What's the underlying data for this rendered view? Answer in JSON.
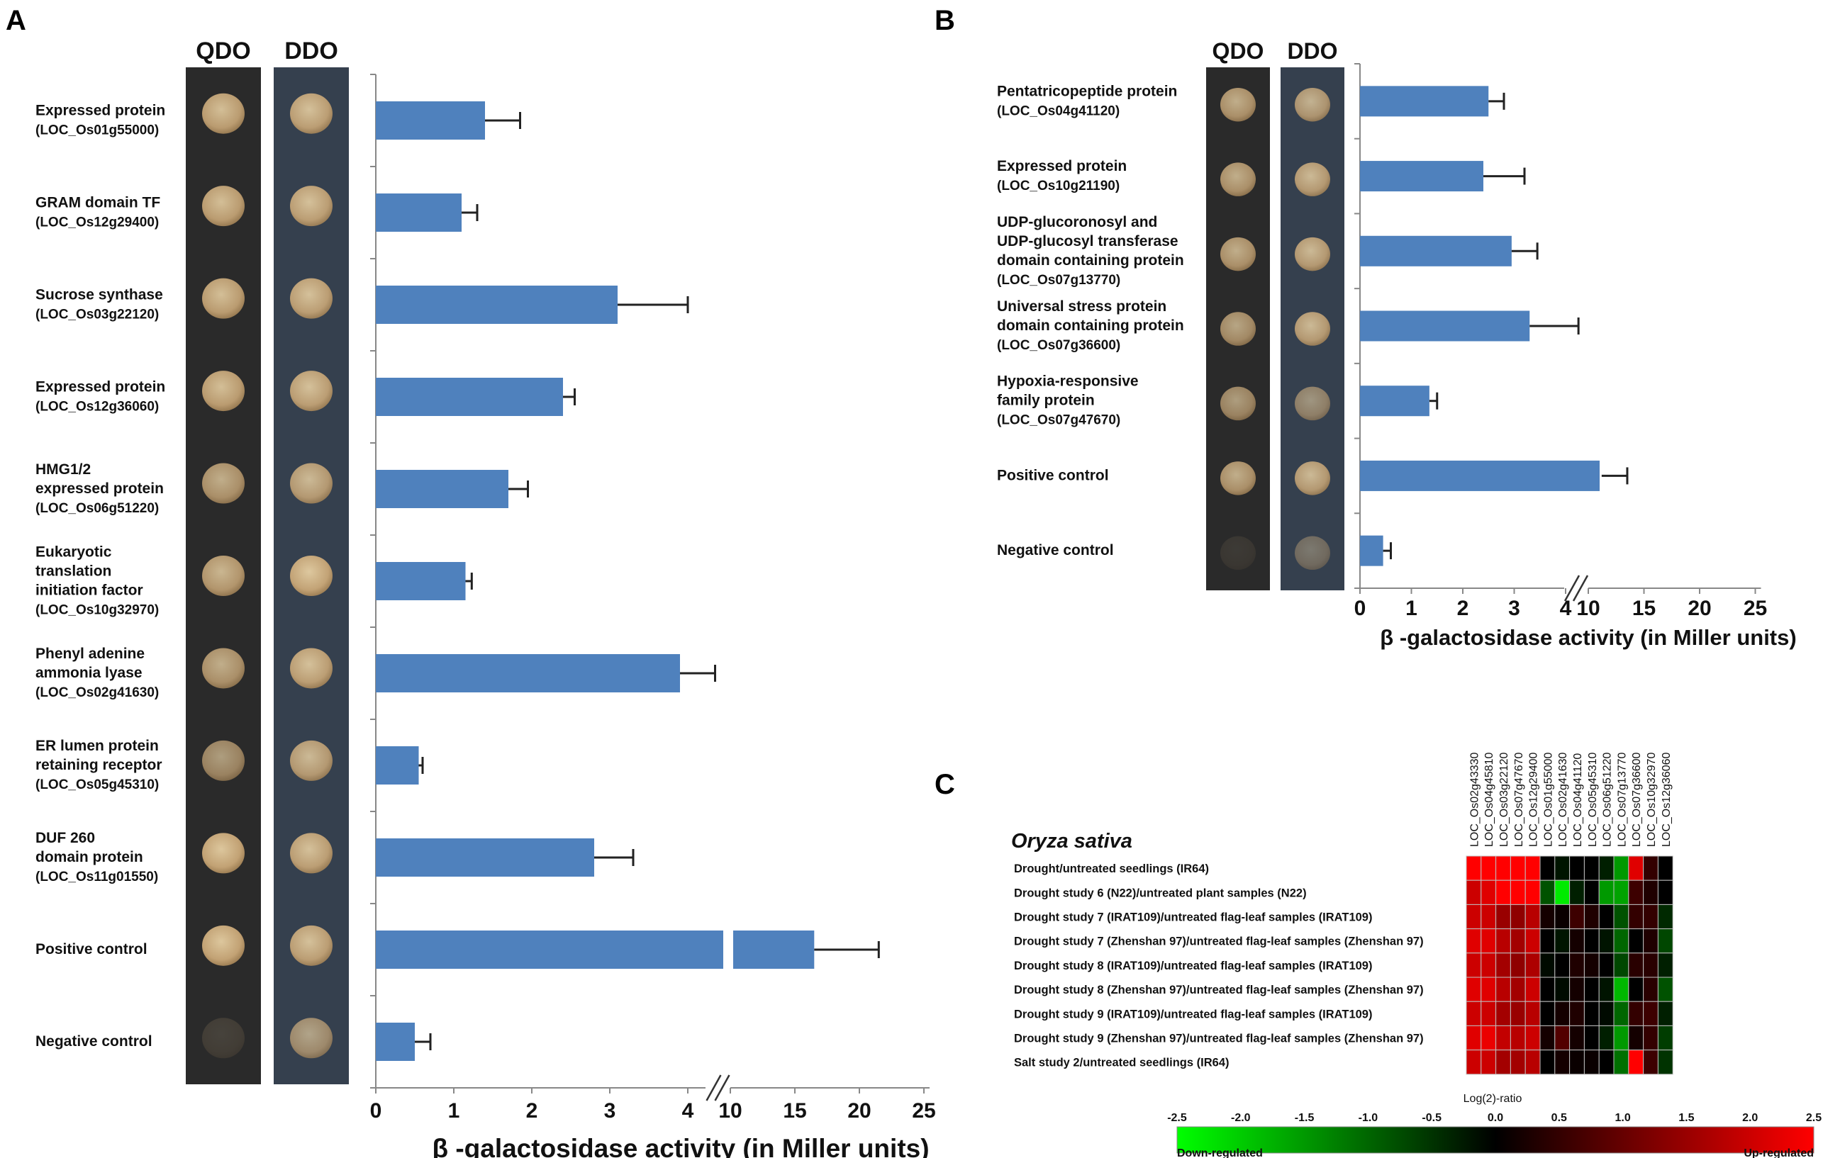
{
  "colors": {
    "bar": "#4f81bd",
    "axis": "#888888",
    "text": "#111111",
    "strip_dark": "#2a2a2a",
    "strip_blue": "#35404e",
    "colony": "#d7b98a"
  },
  "panels": {
    "a": "A",
    "b": "B",
    "c": "C"
  },
  "chart_data": [
    {
      "type": "bar",
      "panel": "A",
      "orientation": "horizontal",
      "column_labels": [
        "QDO",
        "DDO"
      ],
      "xlabel": "β -galactosidase activity (in Miller units)",
      "axis_break": "between 4 and 10",
      "xticks_low": [
        "0",
        "1",
        "2",
        "3",
        "4"
      ],
      "xticks_high": [
        "10",
        "15",
        "20",
        "25"
      ],
      "categories": [
        {
          "name": "Expressed protein",
          "id": "(LOC_Os01g55000)"
        },
        {
          "name": "GRAM domain TF",
          "id": "(LOC_Os12g29400)"
        },
        {
          "name": "Sucrose synthase",
          "id": "(LOC_Os03g22120)"
        },
        {
          "name": "Expressed protein",
          "id": "(LOC_Os12g36060)"
        },
        {
          "name": "HMG1/2\nexpressed protein",
          "id": "(LOC_Os06g51220)"
        },
        {
          "name": "Eukaryotic\ntranslation\ninitiation factor",
          "id": "(LOC_Os10g32970)"
        },
        {
          "name": "Phenyl adenine\nammonia lyase",
          "id": "(LOC_Os02g41630)"
        },
        {
          "name": "ER lumen protein\nretaining receptor",
          "id": "(LOC_Os05g45310)"
        },
        {
          "name": "DUF 260\ndomain protein",
          "id": "(LOC_Os11g01550)"
        },
        {
          "name": "Positive control",
          "id": ""
        },
        {
          "name": "Negative control",
          "id": ""
        }
      ],
      "values": [
        1.4,
        1.1,
        3.1,
        2.4,
        1.7,
        1.15,
        3.9,
        0.55,
        2.8,
        16.5,
        0.5
      ],
      "errors": [
        0.45,
        0.2,
        0.9,
        0.15,
        0.25,
        0.08,
        0.45,
        0.05,
        0.5,
        5.0,
        0.2
      ],
      "colony_strength": [
        [
          0.9,
          0.9
        ],
        [
          0.9,
          0.9
        ],
        [
          0.9,
          0.9
        ],
        [
          0.9,
          0.9
        ],
        [
          0.8,
          0.85
        ],
        [
          0.85,
          0.95
        ],
        [
          0.8,
          0.9
        ],
        [
          0.7,
          0.85
        ],
        [
          0.95,
          0.9
        ],
        [
          0.95,
          0.9
        ],
        [
          0.15,
          0.7
        ]
      ]
    },
    {
      "type": "bar",
      "panel": "B",
      "orientation": "horizontal",
      "column_labels": [
        "QDO",
        "DDO"
      ],
      "xlabel": "β -galactosidase activity (in Miller units)",
      "axis_break": "between 4 and 10",
      "xticks_low": [
        "0",
        "1",
        "2",
        "3",
        "4"
      ],
      "xticks_high": [
        "10",
        "15",
        "20",
        "25"
      ],
      "categories": [
        {
          "name": "Pentatricopeptide protein",
          "id": "(LOC_Os04g41120)"
        },
        {
          "name": "Expressed protein",
          "id": "(LOC_Os10g21190)"
        },
        {
          "name": "UDP-glucoronosyl and\nUDP-glucosyl transferase\ndomain containing protein",
          "id": "(LOC_Os07g13770)"
        },
        {
          "name": "Universal stress protein\ndomain containing protein",
          "id": "(LOC_Os07g36600)"
        },
        {
          "name": "Hypoxia-responsive\nfamily protein",
          "id": "(LOC_Os07g47670)"
        },
        {
          "name": "Positive control",
          "id": ""
        },
        {
          "name": "Negative control",
          "id": ""
        }
      ],
      "values": [
        2.5,
        2.4,
        2.95,
        3.3,
        1.35,
        11.2,
        0.45
      ],
      "errors": [
        0.3,
        0.8,
        0.5,
        0.95,
        0.15,
        2.3,
        0.15
      ],
      "colony_strength": [
        [
          0.8,
          0.8
        ],
        [
          0.8,
          0.85
        ],
        [
          0.8,
          0.85
        ],
        [
          0.75,
          0.85
        ],
        [
          0.7,
          0.6
        ],
        [
          0.8,
          0.85
        ],
        [
          0.1,
          0.4
        ]
      ]
    },
    {
      "type": "heatmap",
      "panel": "C",
      "title": "Oryza sativa",
      "columns": [
        "LOC_Os02g43330",
        "LOC_Os04g45810",
        "LOC_Os03g22120",
        "LOC_Os07g47670",
        "LOC_Os12g29400",
        "LOC_Os01g55000",
        "LOC_Os02g41630",
        "LOC_Os04g41120",
        "LOC_Os05g45310",
        "LOC_Os06g51220",
        "LOC_Os07g13770",
        "LOC_Os07g36600",
        "LOC_Os10g32970",
        "LOC_Os12g36060"
      ],
      "rows": [
        "Drought/untreated seedlings (IR64)",
        "Drought study 6 (N22)/untreated plant samples (N22)",
        "Drought study 7 (IRAT109)/untreated flag-leaf samples (IRAT109)",
        "Drought study 7 (Zhenshan 97)/untreated flag-leaf samples (Zhenshan 97)",
        "Drought study 8 (IRAT109)/untreated flag-leaf samples (IRAT109)",
        "Drought study 8 (Zhenshan 97)/untreated flag-leaf samples (Zhenshan 97)",
        "Drought study 9 (IRAT109)/untreated flag-leaf samples (IRAT109)",
        "Drought study 9 (Zhenshan 97)/untreated flag-leaf samples (Zhenshan 97)",
        "Salt study 2/untreated seedlings (IR64)"
      ],
      "values": [
        [
          2.5,
          2.5,
          2.5,
          2.5,
          2.5,
          0.0,
          -0.2,
          0.0,
          0.0,
          -0.3,
          -1.5,
          2.2,
          0.5,
          0.0
        ],
        [
          2.0,
          2.2,
          2.5,
          2.5,
          2.5,
          -0.8,
          -2.3,
          -0.3,
          0.0,
          -1.5,
          -1.6,
          0.6,
          0.3,
          0.0
        ],
        [
          2.0,
          2.0,
          1.5,
          1.4,
          1.8,
          0.2,
          0.1,
          0.6,
          0.3,
          0.0,
          -0.8,
          0.5,
          0.5,
          -0.4
        ],
        [
          2.2,
          2.2,
          1.8,
          1.6,
          2.0,
          0.0,
          -0.2,
          0.2,
          0.0,
          -0.2,
          -1.0,
          0.0,
          0.3,
          -0.7
        ],
        [
          2.0,
          2.0,
          1.6,
          1.4,
          1.7,
          -0.1,
          0.0,
          0.3,
          0.2,
          0.0,
          -0.7,
          0.4,
          0.4,
          -0.3
        ],
        [
          2.2,
          2.2,
          1.8,
          1.6,
          2.0,
          0.0,
          -0.1,
          0.2,
          0.0,
          -0.2,
          -1.8,
          0.0,
          0.4,
          -0.8
        ],
        [
          2.0,
          2.0,
          1.6,
          1.5,
          1.8,
          0.0,
          0.2,
          0.3,
          0.0,
          -0.1,
          -1.0,
          0.5,
          0.6,
          -0.3
        ],
        [
          2.2,
          2.3,
          1.9,
          1.8,
          2.0,
          0.2,
          0.8,
          0.2,
          0.0,
          -0.3,
          -1.5,
          0.2,
          0.5,
          -0.6
        ],
        [
          2.0,
          2.0,
          1.6,
          1.6,
          1.8,
          0.0,
          0.2,
          0.1,
          0.1,
          0.0,
          -1.1,
          2.5,
          0.6,
          -0.5
        ]
      ],
      "scale": {
        "title": "Log(2)-ratio",
        "ticks": [
          "-2.5",
          "-2.0",
          "-1.5",
          "-1.0",
          "-0.5",
          "0.0",
          "0.5",
          "1.0",
          "1.5",
          "2.0",
          "2.5"
        ],
        "min": -2.5,
        "max": 2.5,
        "low_label": "Down-regulated",
        "high_label": "Up-regulated"
      }
    }
  ]
}
